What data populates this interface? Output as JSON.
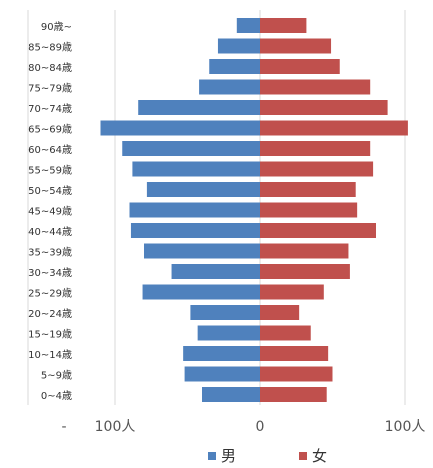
{
  "chart_data": {
    "type": "bar",
    "orientation": "horizontal",
    "layout": "population-pyramid",
    "title": "",
    "xlabel": "",
    "ylabel": "",
    "categories": [
      "0~4歳",
      "5~9歳",
      "10~14歳",
      "15~19歳",
      "20~24歳",
      "25~29歳",
      "30~34歳",
      "35~39歳",
      "40~44歳",
      "45~49歳",
      "50~54歳",
      "55~59歳",
      "60~64歳",
      "65~69歳",
      "70~74歳",
      "75~79歳",
      "80~84歳",
      "85~89歳",
      "90歳~"
    ],
    "series": [
      {
        "name": "男",
        "color": "#4F81BD",
        "side": "left",
        "values": [
          40,
          52,
          53,
          43,
          48,
          81,
          61,
          80,
          89,
          90,
          78,
          88,
          95,
          110,
          84,
          42,
          35,
          29,
          16
        ]
      },
      {
        "name": "女",
        "color": "#C0504D",
        "side": "right",
        "values": [
          46,
          50,
          47,
          35,
          27,
          44,
          62,
          61,
          80,
          67,
          66,
          78,
          76,
          102,
          88,
          76,
          55,
          49,
          32
        ]
      }
    ],
    "xlim": [
      -130,
      130
    ],
    "xticks": [
      {
        "value": -160,
        "label": "-"
      },
      {
        "value": -100,
        "label": "100人"
      },
      {
        "value": 0,
        "label": "0"
      },
      {
        "value": 100,
        "label": "100人"
      }
    ],
    "grid": true,
    "legend": "bottom"
  }
}
